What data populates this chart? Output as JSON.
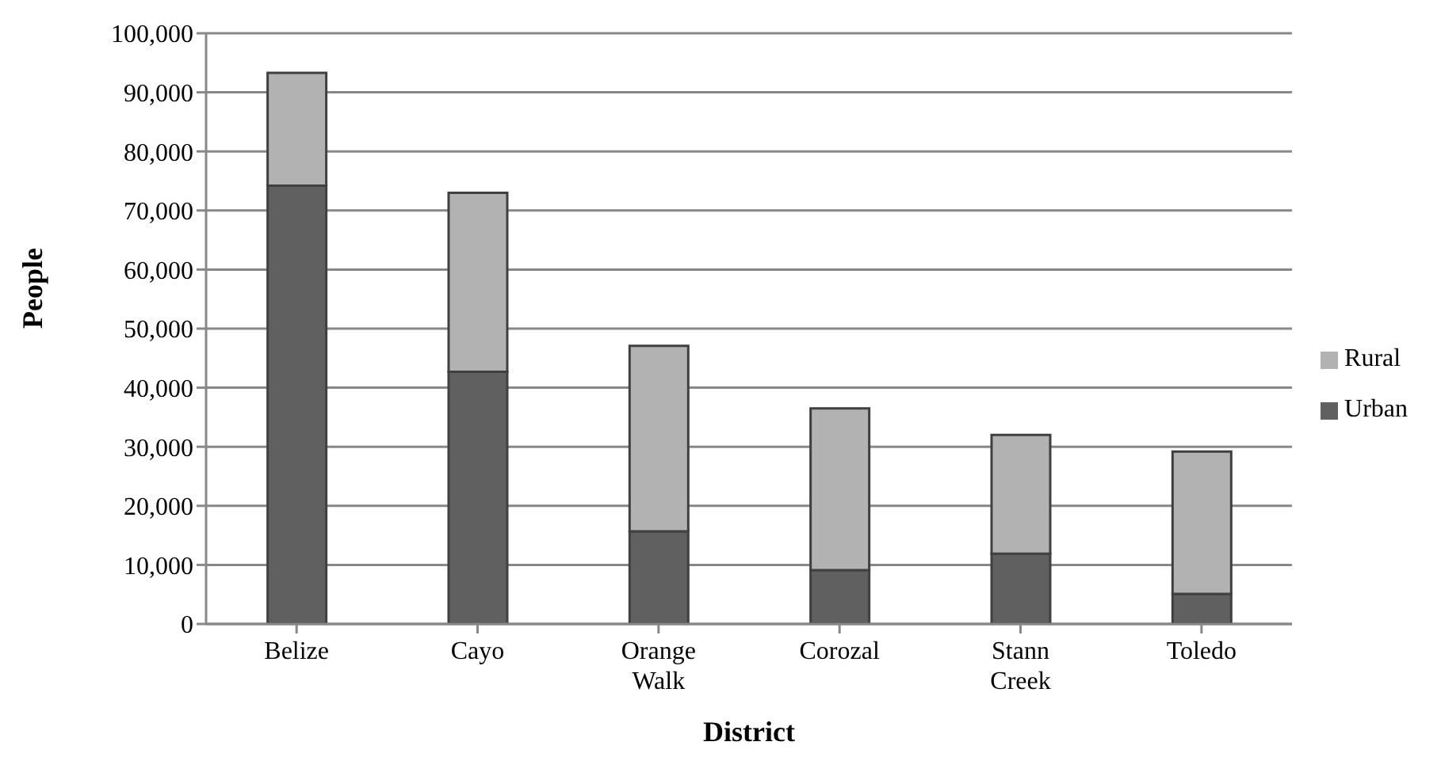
{
  "chart_data": {
    "type": "bar",
    "xlabel": "District",
    "ylabel": "People",
    "categories": [
      "Belize",
      "Cayo",
      "Orange Walk",
      "Corozal",
      "Stann Creek",
      "Toledo"
    ],
    "stacked": true,
    "series": [
      {
        "name": "Urban",
        "color": "#606060",
        "values": [
          74200,
          42700,
          15700,
          9100,
          11900,
          5100
        ]
      },
      {
        "name": "Rural",
        "color": "#b2b2b2",
        "values": [
          19100,
          30300,
          31400,
          27400,
          20100,
          24100
        ]
      }
    ],
    "ylim": [
      0,
      100000
    ],
    "yticks": [
      {
        "value": 0,
        "label": "0"
      },
      {
        "value": 10000,
        "label": "10,000"
      },
      {
        "value": 20000,
        "label": "20,000"
      },
      {
        "value": 30000,
        "label": "30,000"
      },
      {
        "value": 40000,
        "label": "40,000"
      },
      {
        "value": 50000,
        "label": "50,000"
      },
      {
        "value": 60000,
        "label": "60,000"
      },
      {
        "value": 70000,
        "label": "70,000"
      },
      {
        "value": 80000,
        "label": "80,000"
      },
      {
        "value": 90000,
        "label": "90,000"
      },
      {
        "value": 100000,
        "label": "100,000"
      }
    ],
    "grid": "y",
    "legend": "right"
  }
}
